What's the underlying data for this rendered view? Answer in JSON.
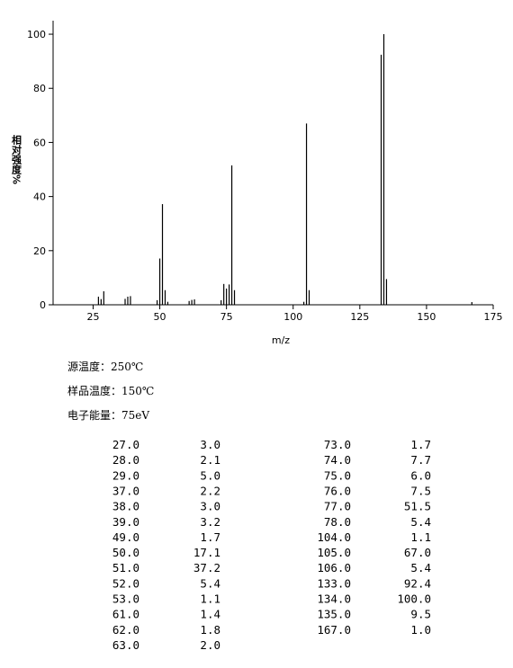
{
  "chart_data": {
    "type": "bar",
    "xlabel": "m/z",
    "ylabel": "相对强度%",
    "x": [
      27,
      28,
      29,
      37,
      38,
      39,
      49,
      50,
      51,
      52,
      53,
      61,
      62,
      63,
      73,
      74,
      75,
      76,
      77,
      78,
      104,
      105,
      106,
      133,
      134,
      135,
      167
    ],
    "x_labels": [
      "27.0",
      "28.0",
      "29.0",
      "37.0",
      "38.0",
      "39.0",
      "49.0",
      "50.0",
      "51.0",
      "52.0",
      "53.0",
      "61.0",
      "62.0",
      "63.0",
      "73.0",
      "74.0",
      "75.0",
      "76.0",
      "77.0",
      "78.0",
      "104.0",
      "105.0",
      "106.0",
      "133.0",
      "134.0",
      "135.0",
      "167.0"
    ],
    "values": [
      3.0,
      2.1,
      5.0,
      2.2,
      3.0,
      3.2,
      1.7,
      17.1,
      37.2,
      5.4,
      1.1,
      1.4,
      1.8,
      2.0,
      1.7,
      7.7,
      6.0,
      7.5,
      51.5,
      5.4,
      1.1,
      67.0,
      5.4,
      92.4,
      100.0,
      9.5,
      1.0
    ],
    "value_labels": [
      "3.0",
      "2.1",
      "5.0",
      "2.2",
      "3.0",
      "3.2",
      "1.7",
      "17.1",
      "37.2",
      "5.4",
      "1.1",
      "1.4",
      "1.8",
      "2.0",
      "1.7",
      "7.7",
      "6.0",
      "7.5",
      "51.5",
      "5.4",
      "1.1",
      "67.0",
      "5.4",
      "92.4",
      "100.0",
      "9.5",
      "1.0"
    ],
    "color": "#000000",
    "xlim": [
      10,
      175
    ],
    "xticks": [
      25,
      50,
      75,
      100,
      125,
      150,
      175
    ],
    "ylim": [
      0,
      105
    ],
    "yticks": [
      0,
      20,
      40,
      60,
      80,
      100
    ]
  },
  "conditions": [
    "源温度：250℃",
    "样品温度：150℃",
    "电子能量：75eV"
  ]
}
